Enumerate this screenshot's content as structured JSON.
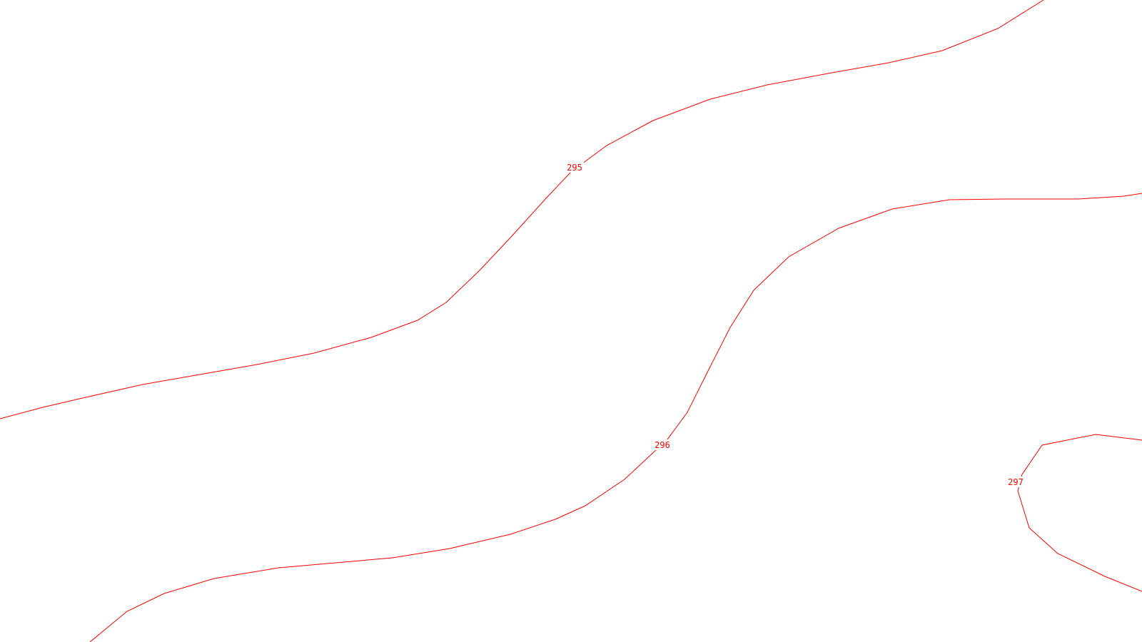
{
  "map": {
    "background_color": "#ffffff",
    "line_color": "#ff0000",
    "contours": [
      {
        "id": "295",
        "elevation": 295,
        "label": "295"
      },
      {
        "id": "296",
        "elevation": 296,
        "label": "296"
      },
      {
        "id": "297",
        "elevation": 297,
        "label": "297"
      }
    ]
  }
}
